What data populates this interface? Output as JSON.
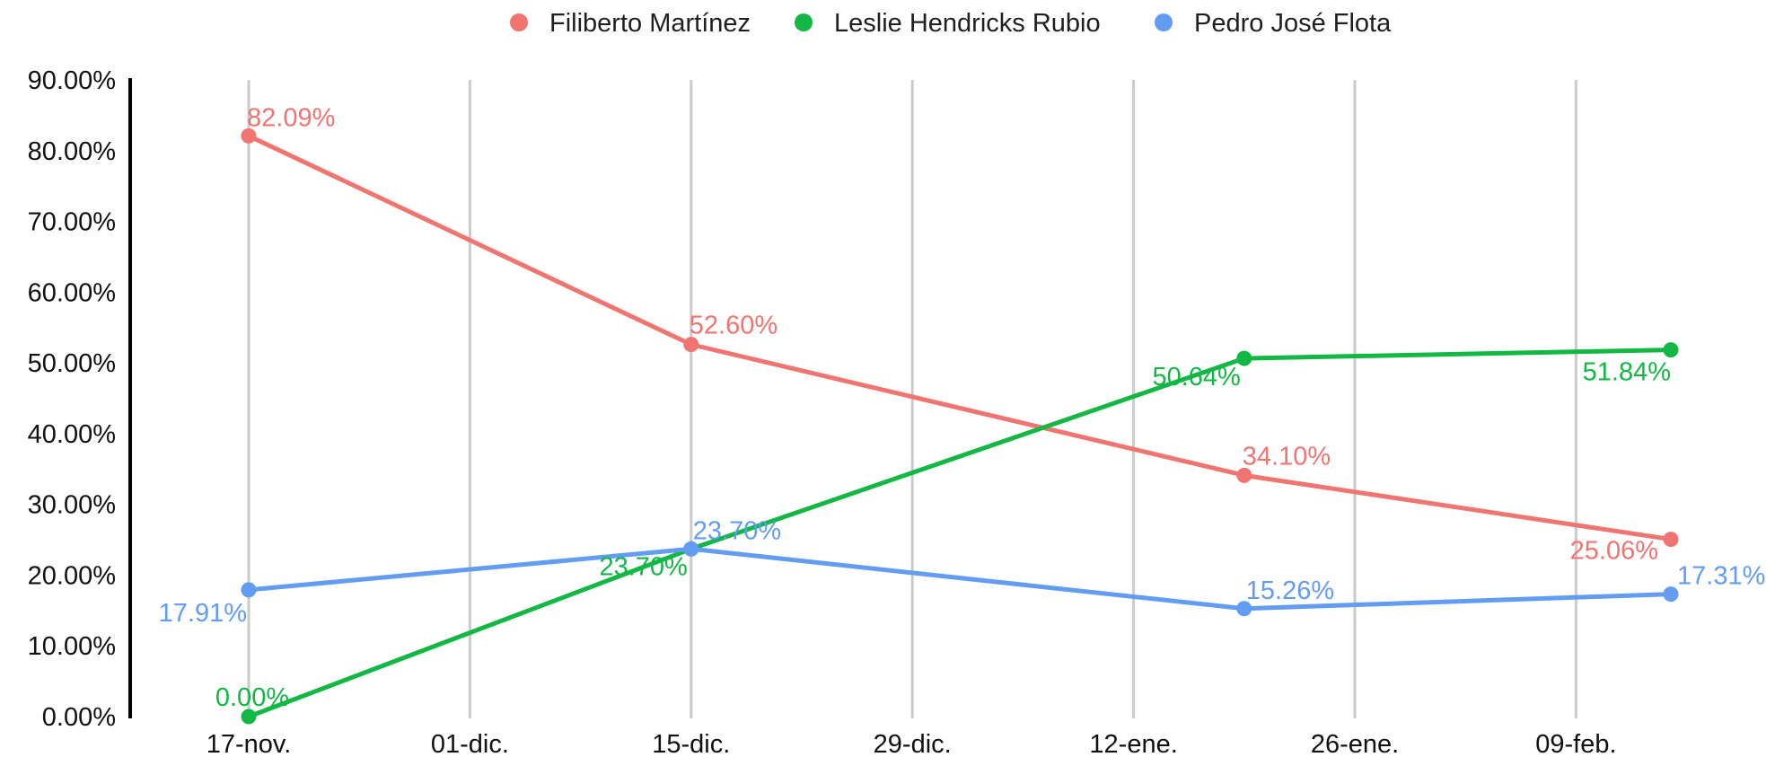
{
  "chart_data": {
    "type": "line",
    "title": "",
    "xlabel": "",
    "ylabel": "",
    "x_ticks": [
      "17-nov.",
      "01-dic.",
      "15-dic.",
      "29-dic.",
      "12-ene.",
      "26-ene.",
      "09-feb."
    ],
    "y_ticks": [
      "90.00%",
      "80.00%",
      "70.00%",
      "60.00%",
      "50.00%",
      "40.00%",
      "30.00%",
      "20.00%",
      "10.00%",
      "0.00%"
    ],
    "ylim": [
      0,
      90
    ],
    "x_domain_days": [
      0,
      91
    ],
    "legend_position": "top-center",
    "grid": "vertical",
    "series": [
      {
        "name": "Filiberto Martínez",
        "color": "#f07470",
        "points": [
          {
            "date": "17-nov.",
            "day": 0,
            "value": 82.09,
            "label": "82.09%"
          },
          {
            "date": "15-dic.",
            "day": 28,
            "value": 52.6,
            "label": "52.60%"
          },
          {
            "date": "20-ene.",
            "day": 63,
            "value": 34.1,
            "label": "34.10%"
          },
          {
            "date": "15-feb.",
            "day": 90,
            "value": 25.06,
            "label": "25.06%"
          }
        ]
      },
      {
        "name": "Leslie Hendricks Rubio",
        "color": "#12b843",
        "points": [
          {
            "date": "17-nov.",
            "day": 0,
            "value": 0.0,
            "label": "0.00%"
          },
          {
            "date": "15-dic.",
            "day": 28,
            "value": 23.7,
            "label": "23.70%"
          },
          {
            "date": "20-ene.",
            "day": 63,
            "value": 50.64,
            "label": "50.64%"
          },
          {
            "date": "15-feb.",
            "day": 90,
            "value": 51.84,
            "label": "51.84%"
          }
        ]
      },
      {
        "name": "Pedro José Flota",
        "color": "#629cf3",
        "points": [
          {
            "date": "17-nov.",
            "day": 0,
            "value": 17.91,
            "label": "17.91%"
          },
          {
            "date": "15-dic.",
            "day": 28,
            "value": 23.7,
            "label": "23.70%"
          },
          {
            "date": "20-ene.",
            "day": 63,
            "value": 15.26,
            "label": "15.26%"
          },
          {
            "date": "15-feb.",
            "day": 90,
            "value": 17.31,
            "label": "17.31%"
          }
        ]
      }
    ]
  }
}
